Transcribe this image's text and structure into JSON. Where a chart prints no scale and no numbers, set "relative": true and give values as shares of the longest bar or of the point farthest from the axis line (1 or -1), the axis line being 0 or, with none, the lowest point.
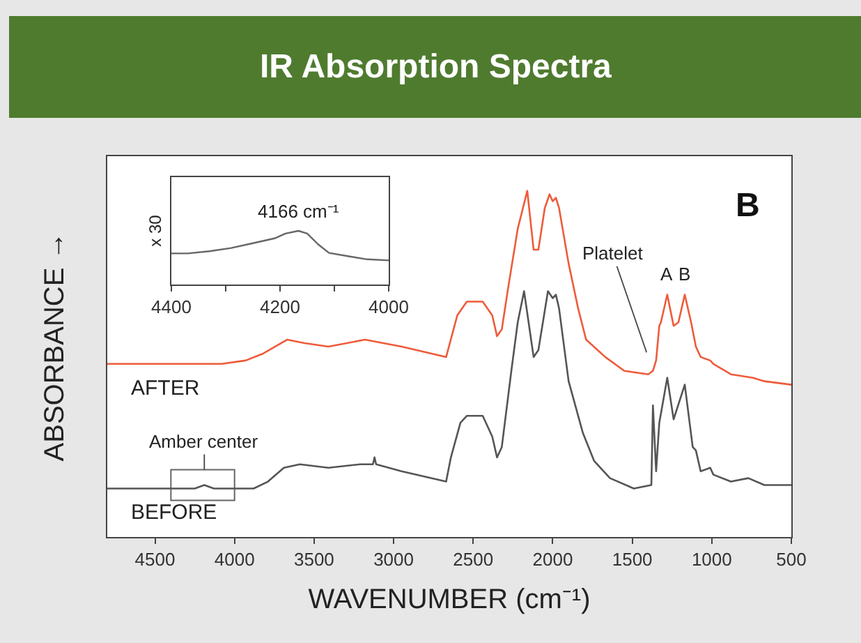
{
  "chart_data": [
    {
      "type": "line",
      "title": "IR Absorption Spectra",
      "xlabel": "WAVENUMBER (cm⁻¹)",
      "ylabel": "ABSORBANCE →",
      "relative": true,
      "xlim": [
        4800,
        500
      ],
      "xticks": [
        4500,
        4000,
        3500,
        3000,
        2500,
        2000,
        1500,
        1000,
        500
      ],
      "series": [
        {
          "name": "AFTER",
          "color": "#ee5b3b",
          "x": [
            4800,
            4430,
            4080,
            3930,
            3820,
            3670,
            3560,
            3410,
            3180,
            2950,
            2670,
            2600,
            2540,
            2440,
            2380,
            2350,
            2320,
            2280,
            2220,
            2160,
            2120,
            2090,
            2050,
            2020,
            2000,
            1980,
            1960,
            1900,
            1840,
            1790,
            1670,
            1550,
            1400,
            1370,
            1350,
            1330,
            1320,
            1280,
            1240,
            1210,
            1170,
            1130,
            1100,
            1070,
            1010,
            990,
            880,
            740,
            670,
            500
          ],
          "values": [
            0.5,
            0.5,
            0.5,
            0.51,
            0.53,
            0.57,
            0.56,
            0.55,
            0.57,
            0.55,
            0.52,
            0.64,
            0.68,
            0.68,
            0.64,
            0.58,
            0.6,
            0.72,
            0.89,
            1.0,
            0.83,
            0.83,
            0.95,
            0.99,
            0.97,
            0.98,
            0.95,
            0.79,
            0.66,
            0.57,
            0.52,
            0.48,
            0.47,
            0.48,
            0.51,
            0.61,
            0.62,
            0.7,
            0.61,
            0.62,
            0.7,
            0.62,
            0.55,
            0.52,
            0.51,
            0.5,
            0.47,
            0.46,
            0.45,
            0.44
          ]
        },
        {
          "name": "BEFORE",
          "color": "#555555",
          "x": [
            4800,
            4370,
            4250,
            4190,
            4130,
            4010,
            3880,
            3790,
            3690,
            3590,
            3410,
            3210,
            3130,
            3120,
            3110,
            2950,
            2670,
            2640,
            2580,
            2540,
            2440,
            2380,
            2350,
            2320,
            2260,
            2220,
            2180,
            2120,
            2090,
            2030,
            2000,
            1980,
            1960,
            1900,
            1810,
            1740,
            1640,
            1490,
            1380,
            1370,
            1350,
            1330,
            1280,
            1240,
            1170,
            1120,
            1100,
            1070,
            1010,
            990,
            880,
            770,
            670,
            500
          ],
          "values": [
            0.14,
            0.14,
            0.14,
            0.15,
            0.14,
            0.14,
            0.14,
            0.16,
            0.2,
            0.21,
            0.2,
            0.21,
            0.21,
            0.23,
            0.21,
            0.19,
            0.16,
            0.23,
            0.33,
            0.35,
            0.35,
            0.29,
            0.23,
            0.26,
            0.48,
            0.62,
            0.71,
            0.52,
            0.54,
            0.71,
            0.69,
            0.7,
            0.66,
            0.45,
            0.3,
            0.22,
            0.17,
            0.14,
            0.15,
            0.38,
            0.19,
            0.33,
            0.46,
            0.34,
            0.44,
            0.26,
            0.25,
            0.19,
            0.2,
            0.18,
            0.16,
            0.17,
            0.15,
            0.15
          ]
        }
      ],
      "annotations": [
        "B",
        {
          "text": "Platelet",
          "x": 1370,
          "y": 0.48
        },
        {
          "text": "A",
          "x": 1280,
          "y": 0.7
        },
        {
          "text": "B",
          "x": 1170,
          "y": 0.7
        },
        {
          "text": "Amber center",
          "x": 4190,
          "y": 0.15
        }
      ]
    },
    {
      "type": "line",
      "ylabel": "x 30",
      "relative": true,
      "xlim": [
        4400,
        4000
      ],
      "xticks": [
        4400,
        {
          "value": 4300,
          "label": null
        },
        4200,
        {
          "value": 4100,
          "label": null
        },
        4000
      ],
      "series": [
        {
          "color": "#666666",
          "x": [
            4400,
            4370,
            4330,
            4290,
            4250,
            4210,
            4190,
            4166,
            4150,
            4130,
            4110,
            4070,
            4040,
            4000
          ],
          "values": [
            0.58,
            0.58,
            0.62,
            0.68,
            0.77,
            0.86,
            0.95,
            1.0,
            0.95,
            0.75,
            0.59,
            0.52,
            0.47,
            0.45
          ]
        }
      ],
      "annotations": [
        {
          "text": "4166 cm⁻¹",
          "x": 4166,
          "y": 1.0
        }
      ]
    }
  ]
}
